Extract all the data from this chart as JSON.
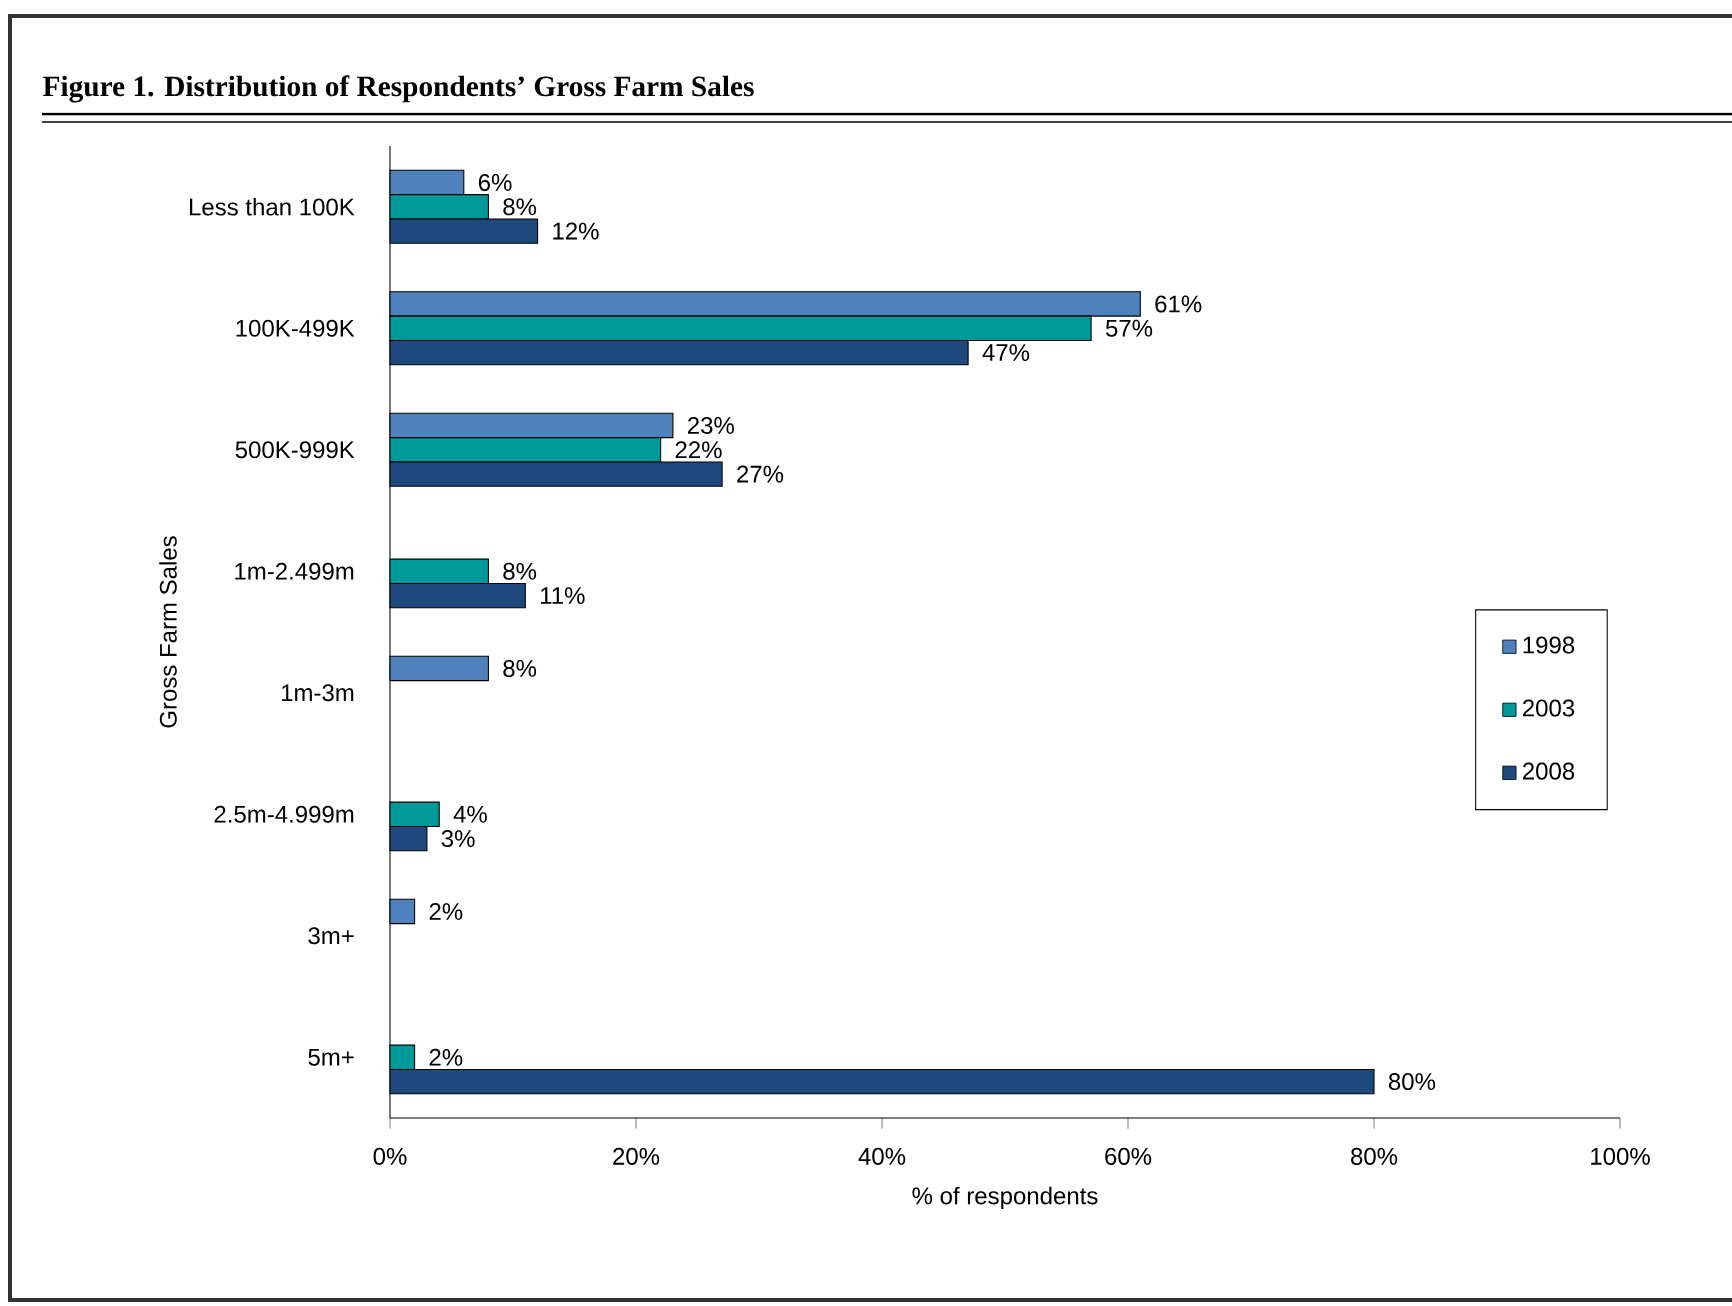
{
  "chart_data": {
    "type": "bar",
    "orientation": "horizontal",
    "title": "Figure 1. Distribution of Respondents’ Gross Farm Sales",
    "xlabel": "% of respondents",
    "ylabel": "Gross Farm Sales",
    "categories": [
      "Less than 100K",
      "100K-499K",
      "500K-999K",
      "1m-2.499m",
      "1m-3m",
      "2.5m-4.999m",
      "3m+",
      "5m+"
    ],
    "series": [
      {
        "name": "1998",
        "color": "#4f81bd",
        "values": [
          6,
          61,
          23,
          null,
          8,
          null,
          2,
          null
        ],
        "value_labels": [
          "6%",
          "61%",
          "23%",
          null,
          "8%",
          null,
          "2%",
          null
        ]
      },
      {
        "name": "2003",
        "color": "#009999",
        "values": [
          8,
          57,
          22,
          8,
          null,
          4,
          null,
          2
        ],
        "value_labels": [
          "8%",
          "57%",
          "22%",
          "8%",
          null,
          "4%",
          null,
          "2%"
        ]
      },
      {
        "name": "2008",
        "color": "#1f497d",
        "values": [
          12,
          47,
          27,
          11,
          null,
          3,
          null,
          80
        ],
        "value_labels": [
          "12%",
          "47%",
          "27%",
          "11%",
          null,
          "3%",
          null,
          "80%"
        ]
      }
    ],
    "xlim": [
      0,
      100
    ],
    "xticks": [
      {
        "value": 0,
        "label": "0%"
      },
      {
        "value": 20,
        "label": "20%"
      },
      {
        "value": 40,
        "label": "40%"
      },
      {
        "value": 60,
        "label": "60%"
      },
      {
        "value": 80,
        "label": "80%"
      },
      {
        "value": 100,
        "label": "100%"
      }
    ],
    "legend": "right",
    "grid": false
  }
}
